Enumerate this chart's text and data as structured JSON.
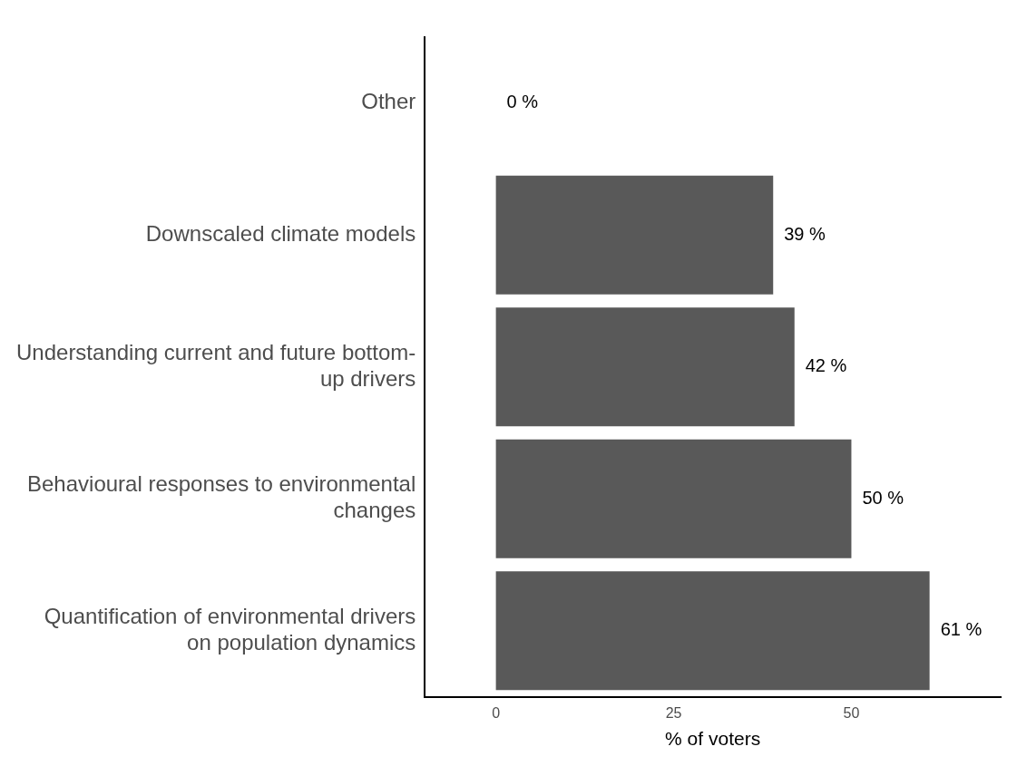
{
  "chart_data": {
    "type": "bar",
    "orientation": "horizontal",
    "xlabel": "% of voters",
    "categories": [
      "Other",
      "Downscaled climate models",
      "Understanding current and future bottom-up drivers",
      "Behavioural responses to environmental changes",
      "Quantification of environmental drivers on population dynamics"
    ],
    "values": [
      0,
      39,
      42,
      50,
      61
    ],
    "value_labels": [
      "0 %",
      "39 %",
      "42 %",
      "50 %",
      "61 %"
    ],
    "color": "#595959",
    "xlim": [
      -10,
      71
    ],
    "xticks": [
      0,
      25,
      50
    ],
    "grid": false,
    "legend": false
  }
}
